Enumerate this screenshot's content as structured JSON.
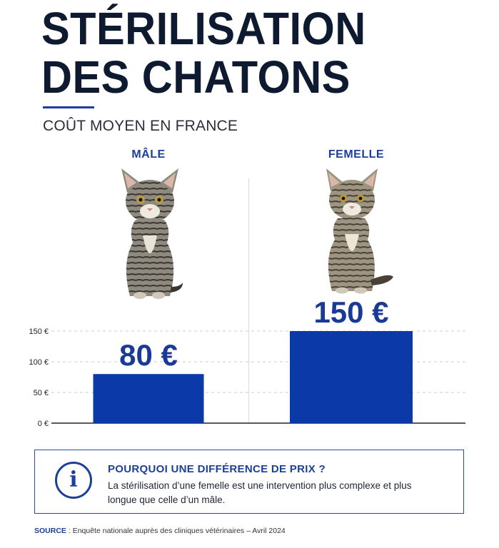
{
  "title_lines": [
    "STÉRILISATION",
    "DES CHATONS"
  ],
  "subtitle": "COÛT MOYEN EN FRANCE",
  "categories": [
    {
      "label": "MÂLE",
      "image": "tabby-kitten-sitting"
    },
    {
      "label": "FEMELLE",
      "image": "tabby-kitten-sitting"
    }
  ],
  "chart_data": {
    "type": "bar",
    "categories": [
      "MÂLE",
      "FEMELLE"
    ],
    "values": [
      80,
      150
    ],
    "data_labels": [
      "80 €",
      "150 €"
    ],
    "ytick_labels": [
      "0 €",
      "50 €",
      "100 €",
      "150 €"
    ],
    "yticks": [
      0,
      50,
      100,
      150
    ],
    "ylim": [
      0,
      150
    ],
    "grid": true,
    "bar_color": "#0b3aa8",
    "title": "",
    "xlabel": "",
    "ylabel": ""
  },
  "info": {
    "icon": "info-icon",
    "icon_glyph": "i",
    "title": "POURQUOI UNE DIFFÉRENCE DE PRIX ?",
    "text": "La stérilisation d’une femelle est une intervention plus complexe et plus longue que celle d’un mâle."
  },
  "source": {
    "label": "SOURCE",
    "text": " : Enquête nationale auprès des cliniques vétérinaires – Avril 2024"
  },
  "colors": {
    "accent": "#1d3f9a",
    "bar": "#0b3aa8",
    "title": "#0e1a2f"
  }
}
